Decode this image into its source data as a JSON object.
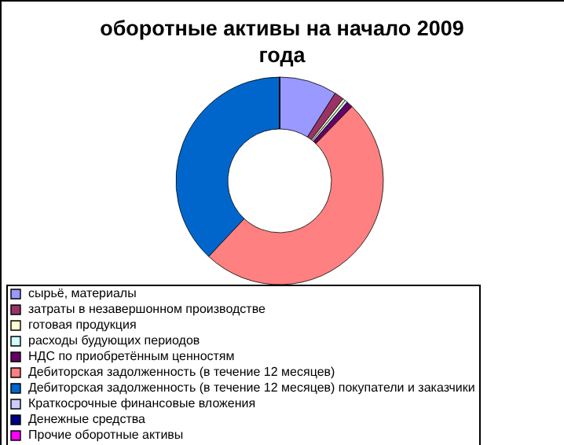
{
  "chart_data": {
    "type": "donut",
    "title": "оборотные активы на начало 2009 года",
    "categories": [
      "сырьё, материалы",
      "затраты в незавершонном производстве",
      "готовая продукция",
      "расходы будующих периодов",
      "НДС по приобретённым ценностям",
      "Дебиторская задолженность (в течение 12 месяцев)",
      "Дебиторская задолженность (в течение 12 месяцев) покупатели и заказчики",
      "Краткосрочные финансовые вложения",
      "Денежные средства",
      "Прочие оборотные активы"
    ],
    "values": [
      9,
      1.5,
      0.4,
      0.4,
      1,
      49.7,
      38,
      0,
      0,
      0
    ],
    "colors": [
      "#9999ff",
      "#993366",
      "#ffffcc",
      "#ccffff",
      "#660066",
      "#ff8080",
      "#0066cc",
      "#ccccff",
      "#000080",
      "#ff00ff"
    ],
    "legend": "bottom"
  }
}
